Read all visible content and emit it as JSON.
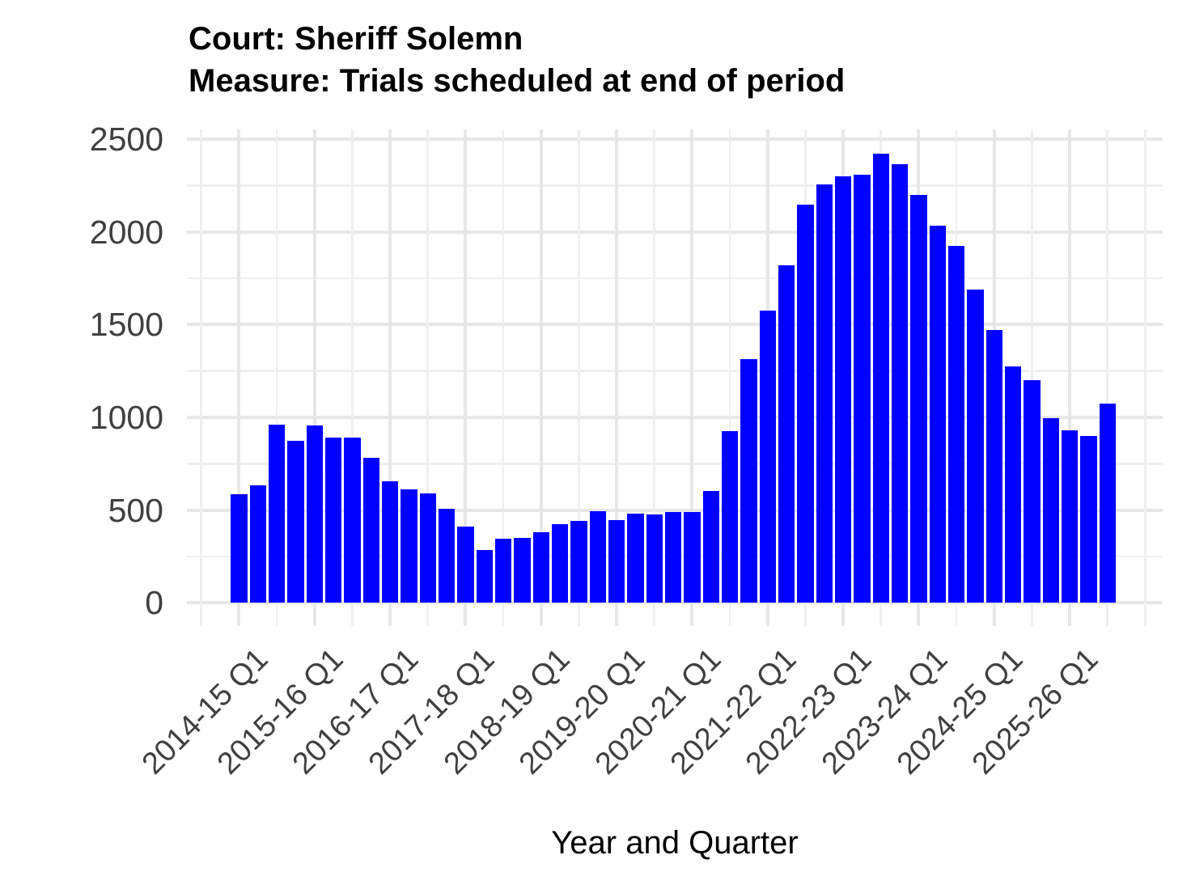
{
  "title": {
    "line1": "Court: Sheriff Solemn",
    "line2": "Measure: Trials scheduled at end of period"
  },
  "chart_data": {
    "type": "bar",
    "title": "Court: Sheriff Solemn",
    "subtitle": "Measure: Trials scheduled at end of period",
    "xlabel": "Year and Quarter",
    "ylabel": "",
    "ylim": [
      0,
      2500
    ],
    "y_ticks": [
      0,
      500,
      1000,
      1500,
      2000,
      2500
    ],
    "y_minor_ticks": [
      250,
      750,
      1250,
      1750,
      2250
    ],
    "grid": true,
    "legend": false,
    "bar_color": "#0000FF",
    "major_grid_color": "#e7e7e7",
    "minor_grid_color": "#efefef",
    "axis_text_color": "#404040",
    "categories": [
      "2014-15 Q1",
      "2014-15 Q2",
      "2014-15 Q3",
      "2014-15 Q4",
      "2015-16 Q1",
      "2015-16 Q2",
      "2015-16 Q3",
      "2015-16 Q4",
      "2016-17 Q1",
      "2016-17 Q2",
      "2016-17 Q3",
      "2016-17 Q4",
      "2017-18 Q1",
      "2017-18 Q2",
      "2017-18 Q3",
      "2017-18 Q4",
      "2018-19 Q1",
      "2018-19 Q2",
      "2018-19 Q3",
      "2018-19 Q4",
      "2019-20 Q1",
      "2019-20 Q2",
      "2019-20 Q3",
      "2019-20 Q4",
      "2020-21 Q1",
      "2020-21 Q2",
      "2020-21 Q3",
      "2020-21 Q4",
      "2021-22 Q1",
      "2021-22 Q2",
      "2021-22 Q3",
      "2021-22 Q4",
      "2022-23 Q1",
      "2022-23 Q2",
      "2022-23 Q3",
      "2022-23 Q4",
      "2023-24 Q1",
      "2023-24 Q2",
      "2023-24 Q3",
      "2023-24 Q4",
      "2024-25 Q1",
      "2024-25 Q2",
      "2024-25 Q3",
      "2024-25 Q4",
      "2025-26 Q1",
      "2025-26 Q2",
      "2025-26 Q3"
    ],
    "values": [
      585,
      635,
      960,
      875,
      955,
      890,
      890,
      780,
      655,
      610,
      590,
      505,
      410,
      285,
      345,
      350,
      380,
      425,
      440,
      495,
      445,
      480,
      475,
      490,
      490,
      605,
      925,
      1315,
      1575,
      1820,
      2145,
      2255,
      2300,
      2310,
      2420,
      2365,
      2200,
      2035,
      1925,
      1690,
      1470,
      1275,
      1200,
      995,
      930,
      900,
      1075
    ],
    "x_tick_labels": [
      "2014-15 Q1",
      "2015-16 Q1",
      "2016-17 Q1",
      "2017-18 Q1",
      "2018-19 Q1",
      "2019-20 Q1",
      "2020-21 Q1",
      "2021-22 Q1",
      "2022-23 Q1",
      "2023-24 Q1",
      "2024-25 Q1",
      "2025-26 Q1"
    ],
    "x_tick_every_n_bars": 4
  }
}
